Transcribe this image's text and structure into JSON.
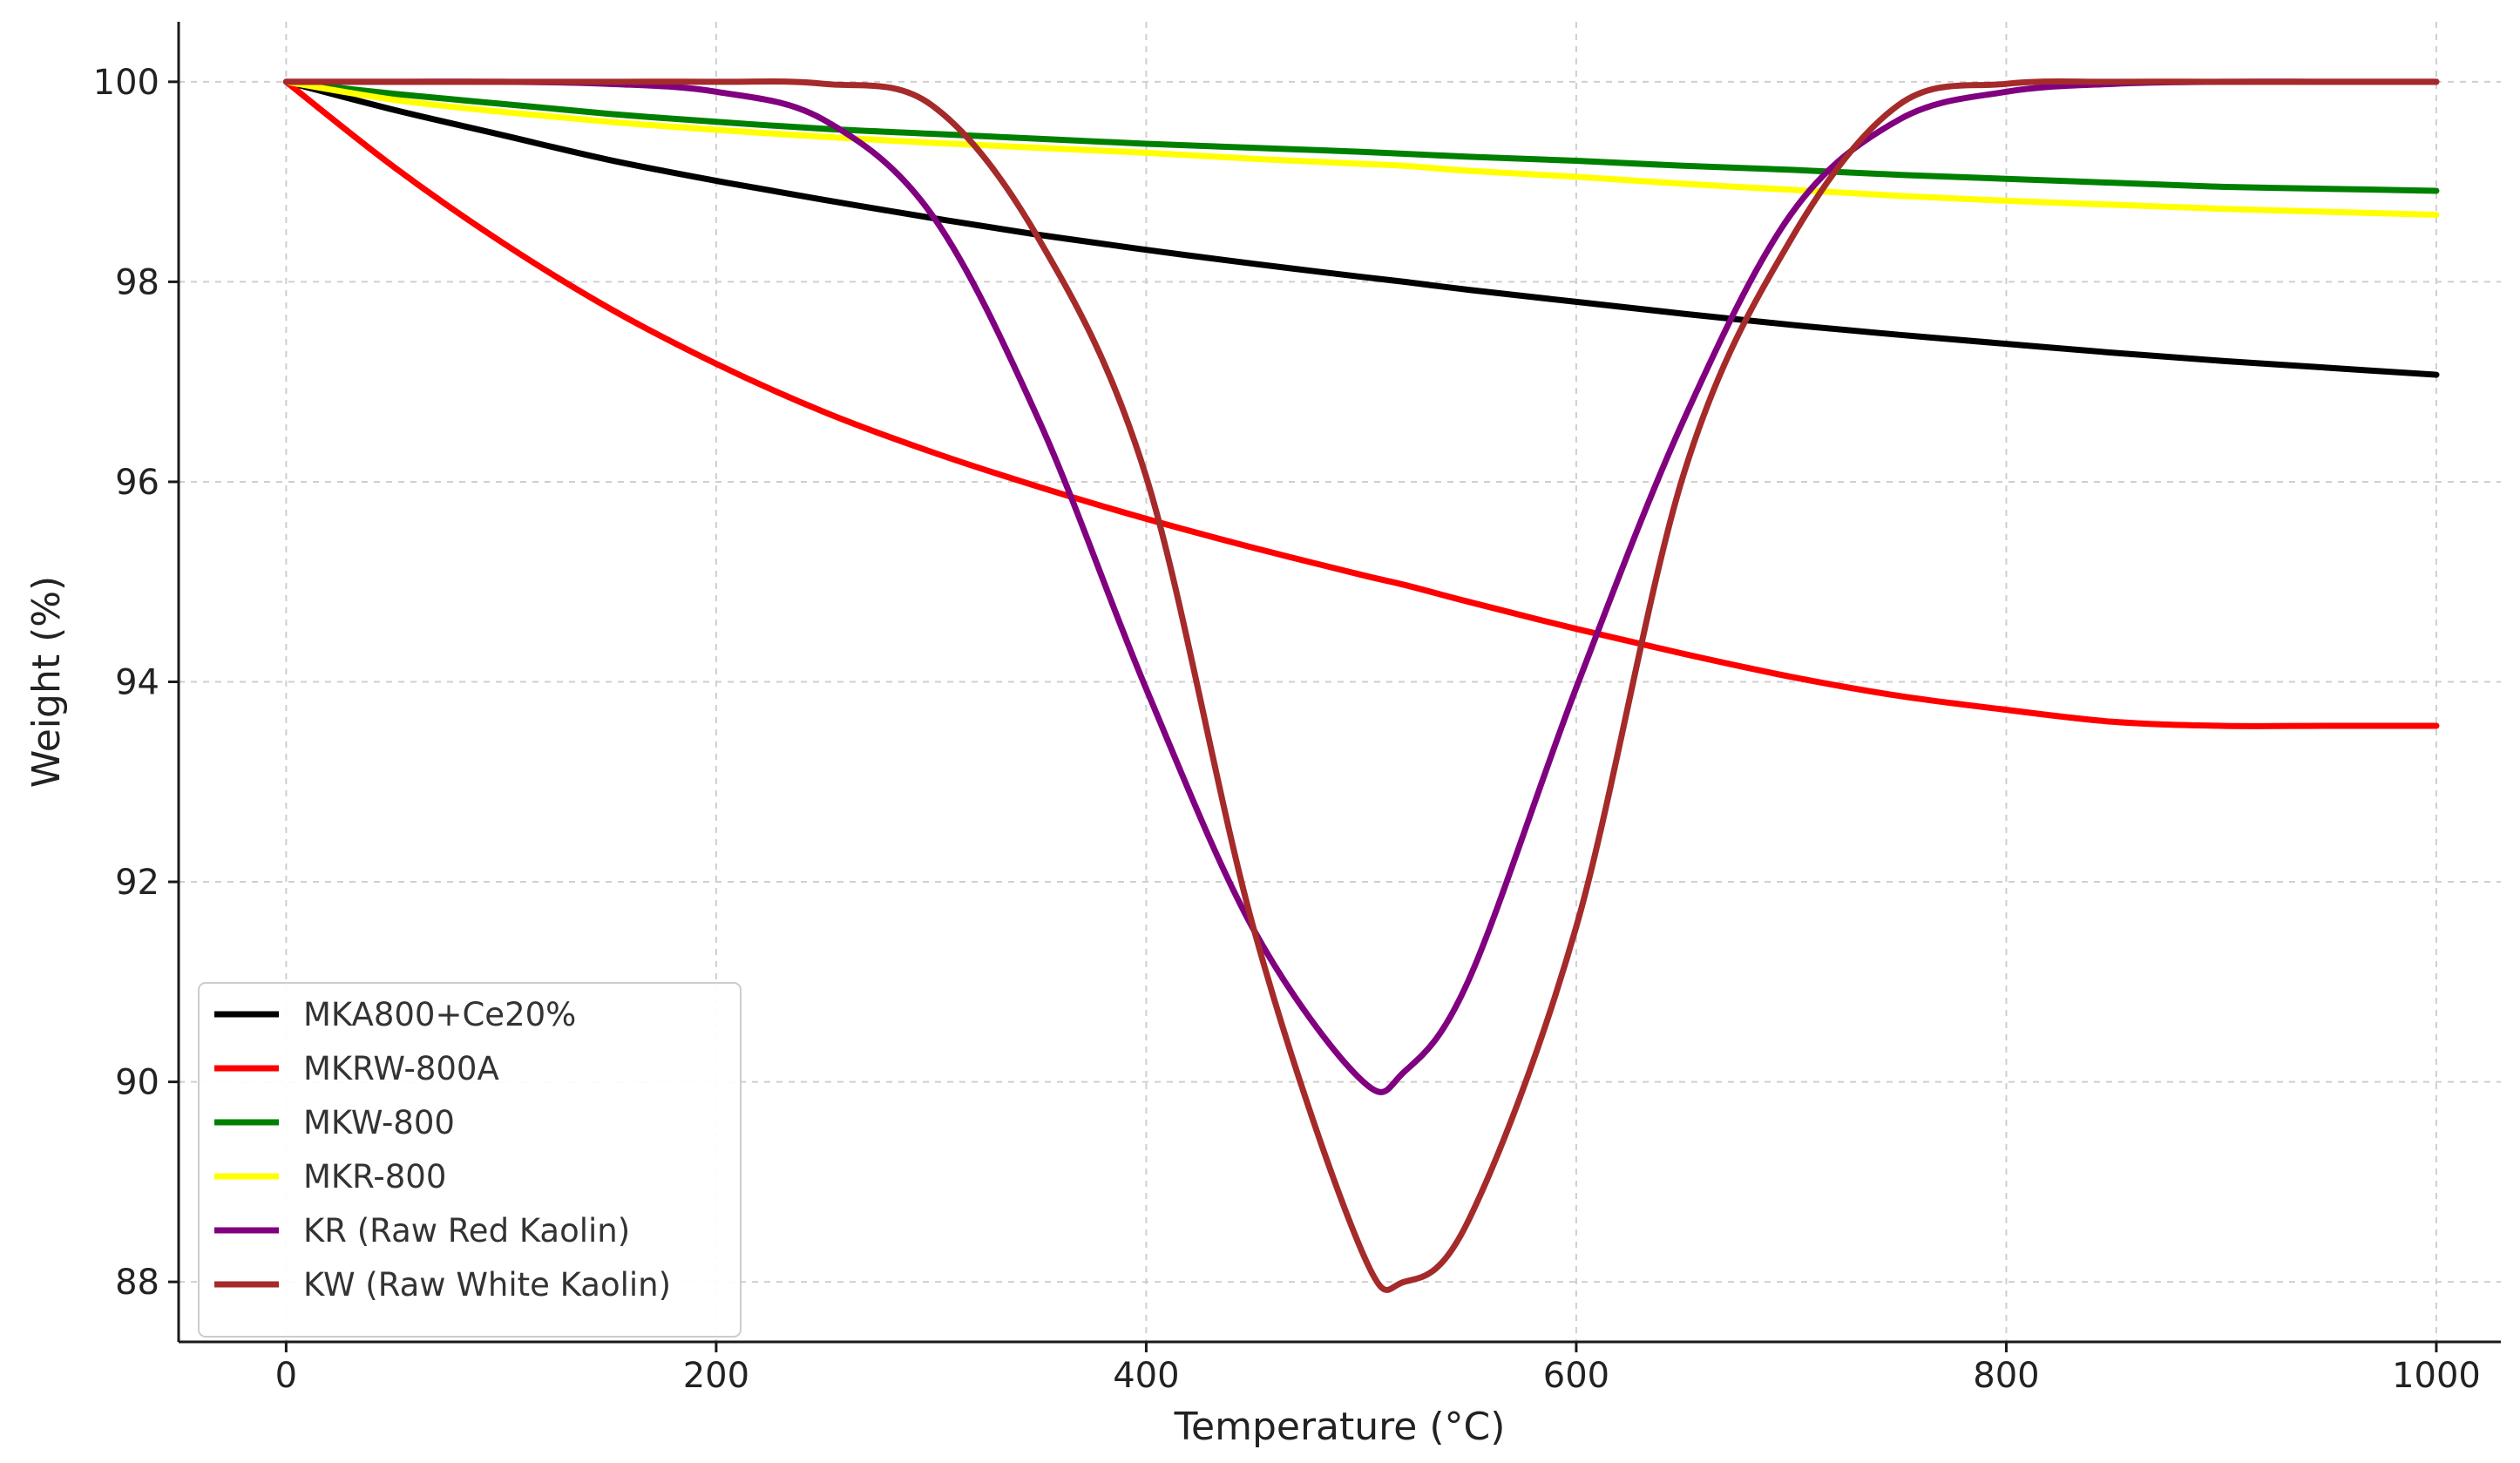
{
  "chart_data": {
    "type": "line",
    "title": "",
    "xlabel": "Temperature (°C)",
    "ylabel": "Weight (%)",
    "xlim": [
      -50,
      1030
    ],
    "ylim": [
      87.4,
      100.6
    ],
    "xticks": [
      0,
      200,
      400,
      600,
      800,
      1000
    ],
    "yticks": [
      88,
      90,
      92,
      94,
      96,
      98,
      100
    ],
    "xtick_labels": [
      "0",
      "200",
      "400",
      "600",
      "800",
      "1000"
    ],
    "ytick_labels": [
      "88",
      "90",
      "92",
      "94",
      "96",
      "98",
      "100"
    ],
    "grid": true,
    "legend_position": "lower-left",
    "x": [
      0,
      50,
      100,
      150,
      200,
      250,
      300,
      350,
      400,
      450,
      500,
      520,
      550,
      600,
      650,
      700,
      750,
      800,
      850,
      900,
      950,
      1000
    ],
    "series": [
      {
        "name": "MKA800+Ce20%",
        "color": "#000000",
        "values": [
          100.0,
          99.72,
          99.47,
          99.22,
          99.01,
          98.82,
          98.64,
          98.47,
          98.32,
          98.18,
          98.05,
          98.0,
          97.92,
          97.8,
          97.68,
          97.57,
          97.47,
          97.38,
          97.29,
          97.21,
          97.14,
          97.07
        ]
      },
      {
        "name": "MKRW-800A",
        "color": "#ff0000",
        "values": [
          100.0,
          99.15,
          98.4,
          97.74,
          97.18,
          96.7,
          96.3,
          95.95,
          95.63,
          95.34,
          95.07,
          94.97,
          94.8,
          94.53,
          94.28,
          94.05,
          93.86,
          93.72,
          93.6,
          93.56,
          93.56,
          93.56
        ]
      },
      {
        "name": "MKW-800",
        "color": "#008000",
        "values": [
          100.0,
          99.88,
          99.78,
          99.68,
          99.6,
          99.53,
          99.48,
          99.43,
          99.38,
          99.34,
          99.3,
          99.28,
          99.25,
          99.21,
          99.16,
          99.12,
          99.07,
          99.03,
          98.99,
          98.95,
          98.93,
          98.91
        ]
      },
      {
        "name": "MKR-800",
        "color": "#ffff00",
        "values": [
          100.0,
          99.82,
          99.7,
          99.6,
          99.52,
          99.45,
          99.39,
          99.34,
          99.29,
          99.23,
          99.18,
          99.16,
          99.11,
          99.05,
          98.98,
          98.92,
          98.86,
          98.81,
          98.77,
          98.73,
          98.7,
          98.67
        ]
      },
      {
        "name": "KR (Raw Red Kaolin)",
        "color": "#800080",
        "values": [
          100.0,
          100.0,
          100.0,
          99.98,
          99.9,
          99.62,
          98.68,
          96.62,
          93.93,
          91.52,
          90.02,
          90.1,
          91.02,
          93.94,
          96.62,
          98.68,
          99.62,
          99.9,
          99.98,
          100.0,
          100.0,
          100.0
        ]
      },
      {
        "name": "KW (Raw White Kaolin)",
        "color": "#a52a2a",
        "values": [
          100.0,
          100.0,
          100.0,
          100.0,
          100.0,
          99.98,
          99.77,
          98.43,
          96.05,
          91.53,
          88.32,
          88.0,
          88.62,
          91.55,
          96.08,
          98.43,
          99.77,
          99.98,
          100.0,
          100.0,
          100.0,
          100.0
        ]
      }
    ]
  }
}
